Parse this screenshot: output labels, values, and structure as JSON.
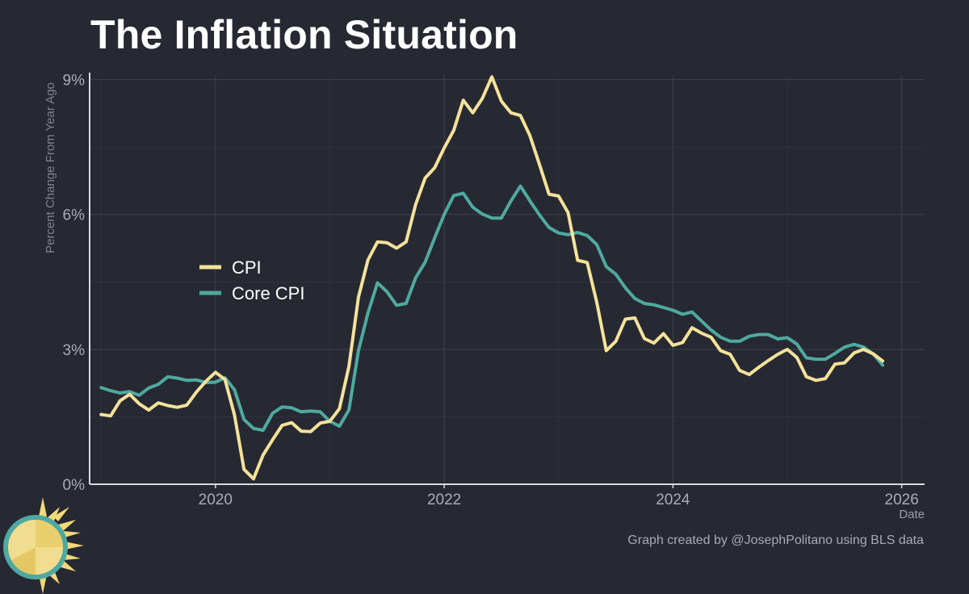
{
  "title": "The Inflation Situation",
  "credit": "Graph created by @JosephPolitano using BLS data",
  "colors": {
    "background": "#262932",
    "cpi": "#f5e29a",
    "core_cpi": "#4fa9a0",
    "grid": "#3e424b",
    "axis_text": "#a9acb3"
  },
  "logo_icon": "sun-icon",
  "chart_data": {
    "type": "line",
    "title": "The Inflation Situation",
    "xlabel": "Date",
    "ylabel": "Percent Change From Year Ago",
    "x_ticks": [
      {
        "value": 2020,
        "label": "2020"
      },
      {
        "value": 2022,
        "label": "2022"
      },
      {
        "value": 2024,
        "label": "2024"
      },
      {
        "value": 2026,
        "label": "2026"
      }
    ],
    "y_ticks": [
      {
        "value": 0,
        "label": "0%"
      },
      {
        "value": 3,
        "label": "3%"
      },
      {
        "value": 6,
        "label": "6%"
      },
      {
        "value": 9,
        "label": "9%"
      }
    ],
    "xlim": [
      2018.9,
      2026.2
    ],
    "ylim": [
      0,
      9.1
    ],
    "grid": true,
    "legend": {
      "position": "left-middle",
      "entries": [
        "CPI",
        "Core CPI"
      ]
    },
    "x_start": "2019-01",
    "x_step": "1 month",
    "series": [
      {
        "name": "CPI",
        "color": "#f5e29a",
        "values": [
          1.55,
          1.52,
          1.86,
          2.0,
          1.79,
          1.65,
          1.81,
          1.75,
          1.71,
          1.76,
          2.05,
          2.29,
          2.49,
          2.33,
          1.54,
          0.33,
          0.12,
          0.65,
          0.99,
          1.31,
          1.37,
          1.18,
          1.17,
          1.36,
          1.4,
          1.68,
          2.62,
          4.16,
          4.99,
          5.39,
          5.37,
          5.25,
          5.39,
          6.22,
          6.81,
          7.04,
          7.48,
          7.87,
          8.54,
          8.26,
          8.58,
          9.06,
          8.52,
          8.26,
          8.2,
          7.75,
          7.11,
          6.45,
          6.41,
          6.04,
          4.98,
          4.93,
          4.05,
          2.97,
          3.18,
          3.67,
          3.7,
          3.24,
          3.14,
          3.35,
          3.09,
          3.15,
          3.48,
          3.36,
          3.27,
          2.97,
          2.89,
          2.53,
          2.44,
          2.6,
          2.75,
          2.89,
          3.0,
          2.82,
          2.39,
          2.31,
          2.35,
          2.67,
          2.7,
          2.92,
          3.0,
          2.9,
          2.74
        ]
      },
      {
        "name": "Core CPI",
        "color": "#4fa9a0",
        "values": [
          2.15,
          2.08,
          2.03,
          2.06,
          1.98,
          2.14,
          2.22,
          2.39,
          2.36,
          2.31,
          2.32,
          2.26,
          2.27,
          2.37,
          2.1,
          1.44,
          1.24,
          1.2,
          1.58,
          1.72,
          1.7,
          1.61,
          1.63,
          1.61,
          1.4,
          1.29,
          1.65,
          2.97,
          3.81,
          4.48,
          4.28,
          3.98,
          4.02,
          4.59,
          4.94,
          5.48,
          6.0,
          6.42,
          6.47,
          6.16,
          6.01,
          5.92,
          5.92,
          6.3,
          6.63,
          6.3,
          5.99,
          5.71,
          5.59,
          5.55,
          5.6,
          5.53,
          5.33,
          4.84,
          4.67,
          4.37,
          4.13,
          4.02,
          3.99,
          3.93,
          3.87,
          3.78,
          3.83,
          3.63,
          3.43,
          3.27,
          3.18,
          3.18,
          3.29,
          3.33,
          3.33,
          3.23,
          3.26,
          3.12,
          2.81,
          2.78,
          2.78,
          2.91,
          3.05,
          3.11,
          3.05,
          2.9,
          2.65
        ]
      }
    ]
  }
}
